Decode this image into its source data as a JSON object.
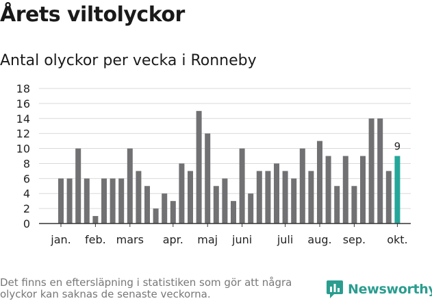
{
  "header": {
    "title": "Årets viltolyckor",
    "subtitle": "Antal olyckor per vecka i Ronneby"
  },
  "footer": {
    "note": "Det finns en eftersläpning i statistiken som gör att några olyckor kan saknas de senaste veckorna.",
    "brand": "Newsworthy"
  },
  "colors": {
    "bar": "#717073",
    "highlight": "#26a69a",
    "grid": "#d9d9d9",
    "axis": "#333333"
  },
  "chart_data": {
    "type": "bar",
    "title": "Antal olyckor per vecka i Ronneby",
    "xlabel": "",
    "ylabel": "",
    "ylim": [
      0,
      18
    ],
    "yticks": [
      0,
      2,
      4,
      6,
      8,
      10,
      12,
      14,
      16,
      18
    ],
    "grid": true,
    "legend": "none",
    "weeks": [
      1,
      2,
      3,
      4,
      5,
      6,
      7,
      8,
      9,
      10,
      11,
      12,
      13,
      14,
      15,
      16,
      17,
      18,
      19,
      20,
      21,
      22,
      23,
      24,
      25,
      26,
      27,
      28,
      29,
      30,
      31,
      32,
      33,
      34,
      35,
      36,
      37,
      38,
      39,
      40
    ],
    "values": [
      6,
      6,
      10,
      6,
      1,
      6,
      6,
      6,
      10,
      7,
      5,
      2,
      4,
      3,
      8,
      7,
      15,
      12,
      5,
      6,
      3,
      10,
      4,
      7,
      7,
      8,
      7,
      6,
      10,
      7,
      11,
      9,
      5,
      9,
      5,
      9,
      14,
      14,
      7,
      9
    ],
    "highlight_index": 39,
    "highlight_label": "9",
    "month_labels": [
      {
        "label": "jan.",
        "week": 1
      },
      {
        "label": "feb.",
        "week": 5
      },
      {
        "label": "mars",
        "week": 9
      },
      {
        "label": "apr.",
        "week": 14
      },
      {
        "label": "maj",
        "week": 18
      },
      {
        "label": "juni",
        "week": 22
      },
      {
        "label": "juli",
        "week": 27
      },
      {
        "label": "aug.",
        "week": 31
      },
      {
        "label": "sep.",
        "week": 35
      },
      {
        "label": "okt.",
        "week": 40
      }
    ]
  }
}
